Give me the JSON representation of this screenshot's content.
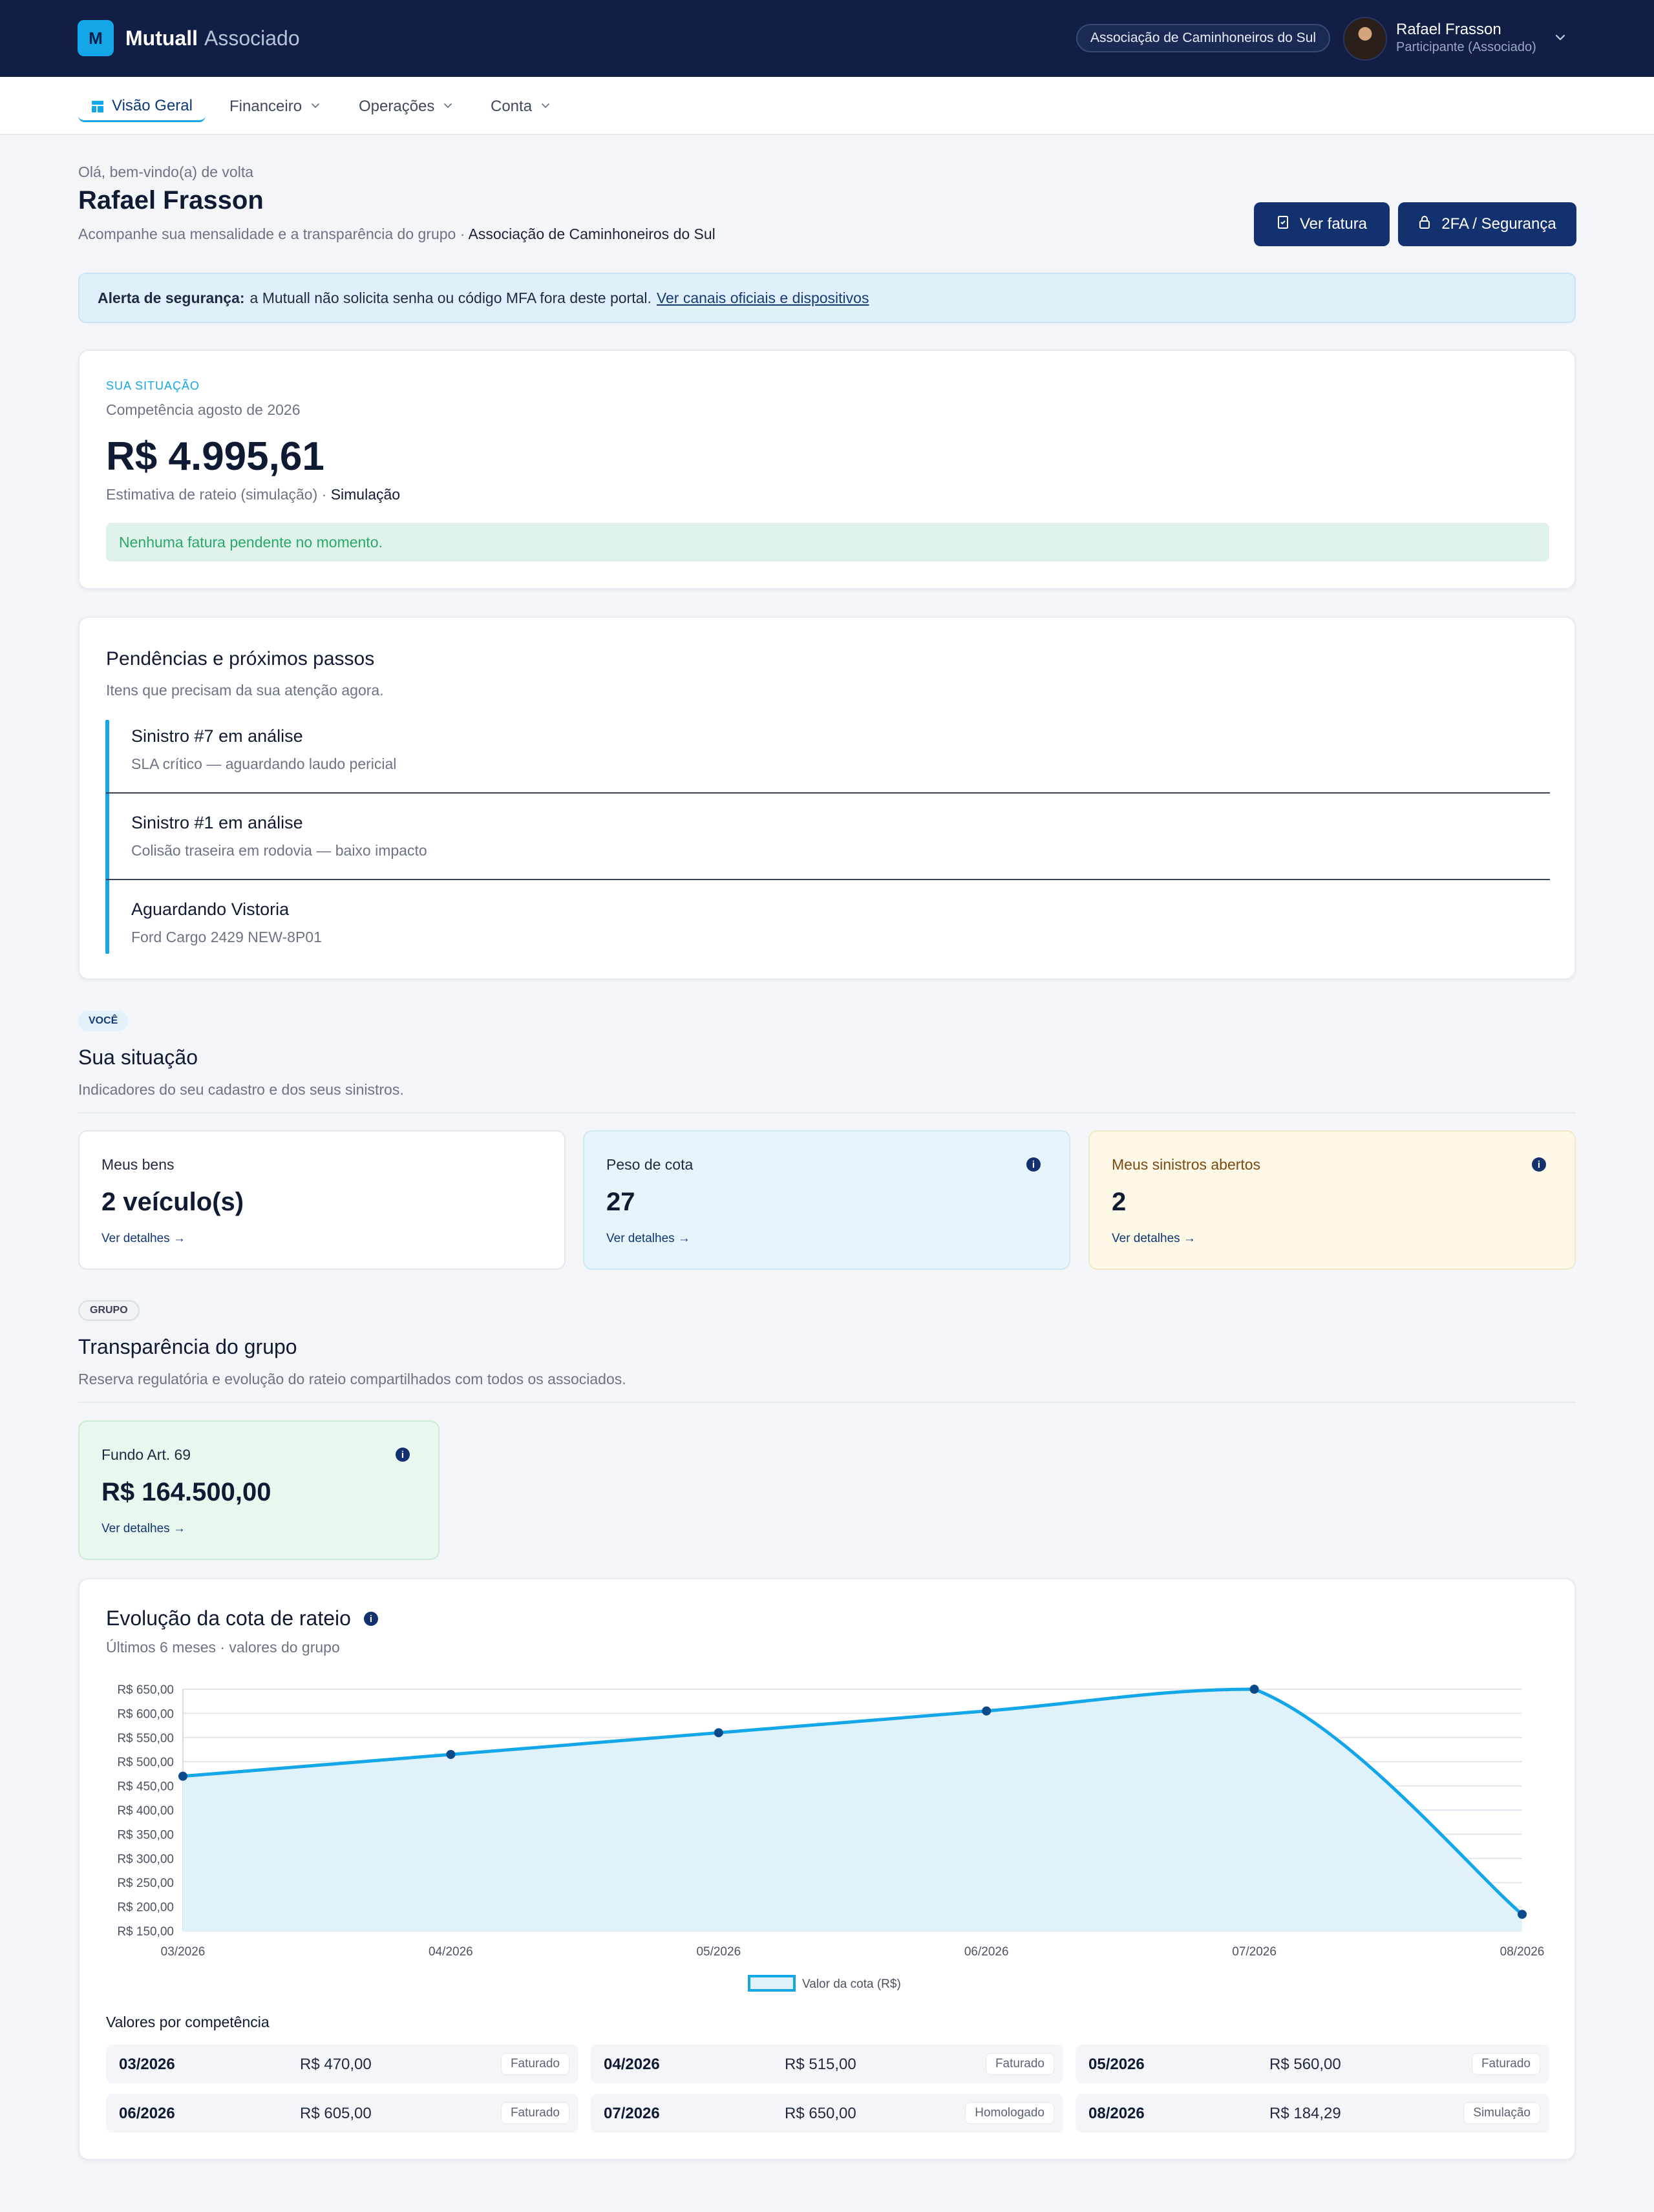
{
  "header": {
    "brand_mark": "M",
    "brand_name": "Mutuall",
    "brand_sub": "Associado",
    "org": "Associação de Caminhoneiros do Sul",
    "user_name": "Rafael Frasson",
    "user_role": "Participante (Associado)"
  },
  "nav": {
    "tabs": [
      {
        "label": "Visão Geral",
        "active": true
      },
      {
        "label": "Financeiro"
      },
      {
        "label": "Operações"
      },
      {
        "label": "Conta"
      }
    ]
  },
  "page": {
    "greeting": "Olá, bem-vindo(a) de volta",
    "title": "Rafael Frasson",
    "subtitle_prefix": "Acompanhe sua mensalidade e a transparência do grupo ·",
    "subtitle_org": "Associação de Caminhoneiros do Sul",
    "btn_invoice": "Ver fatura",
    "btn_security": "2FA / Segurança"
  },
  "alert": {
    "bold": "Alerta de segurança:",
    "text": "a Mutuall não solicita senha ou código MFA fora deste portal.",
    "link": "Ver canais oficiais e dispositivos"
  },
  "situation": {
    "kicker": "Sua situação",
    "competence": "Competência agosto de 2026",
    "amount": "R$ 4.995,61",
    "note_prefix": "Estimativa de rateio (simulação) ·",
    "note_bold": "Simulação",
    "status": "Nenhuma fatura pendente no momento."
  },
  "pending": {
    "title": "Pendências e próximos passos",
    "subtitle": "Itens que precisam da sua atenção agora.",
    "items": [
      {
        "title": "Sinistro #7 em análise",
        "desc": "SLA crítico — aguardando laudo pericial"
      },
      {
        "title": "Sinistro #1 em análise",
        "desc": "Colisão traseira em rodovia — baixo impacto"
      },
      {
        "title": "Aguardando Vistoria",
        "desc": "Ford Cargo 2429 NEW-8P01"
      }
    ]
  },
  "you": {
    "chip": "VOCÊ",
    "title": "Sua situação",
    "subtitle": "Indicadores do seu cadastro e dos seus sinistros.",
    "cards": [
      {
        "label": "Meus bens",
        "value": "2 veículo(s)",
        "link": "Ver detalhes →"
      },
      {
        "label": "Peso de cota",
        "value": "27",
        "link": "Ver detalhes →"
      },
      {
        "label": "Meus sinistros abertos",
        "value": "2",
        "link": "Ver detalhes →"
      }
    ]
  },
  "group": {
    "chip": "GRUPO",
    "title": "Transparência do grupo",
    "subtitle": "Reserva regulatória e evolução do rateio compartilhados com todos os associados.",
    "fund_label": "Fundo Art. 69",
    "fund_value": "R$ 164.500,00",
    "fund_link": "Ver detalhes →"
  },
  "chart_card": {
    "title": "Evolução da cota de rateio",
    "subtitle": "Últimos 6 meses · valores do grupo",
    "values_title": "Valores por competência",
    "rows": [
      {
        "comp": "03/2026",
        "amount": "R$ 470,00",
        "status": "Faturado"
      },
      {
        "comp": "04/2026",
        "amount": "R$ 515,00",
        "status": "Faturado"
      },
      {
        "comp": "05/2026",
        "amount": "R$ 560,00",
        "status": "Faturado"
      },
      {
        "comp": "06/2026",
        "amount": "R$ 605,00",
        "status": "Faturado"
      },
      {
        "comp": "07/2026",
        "amount": "R$ 650,00",
        "status": "Homologado"
      },
      {
        "comp": "08/2026",
        "amount": "R$ 184,29",
        "status": "Simulação"
      }
    ]
  },
  "chart_data": {
    "type": "area",
    "x": [
      "03/2026",
      "04/2026",
      "05/2026",
      "06/2026",
      "07/2026",
      "08/2026"
    ],
    "series": [
      {
        "name": "Valor da cota (R$)",
        "values": [
          470,
          515,
          560,
          605,
          650,
          184.29
        ]
      }
    ],
    "yticks": [
      "R$ 650,00",
      "R$ 600,00",
      "R$ 550,00",
      "R$ 500,00",
      "R$ 450,00",
      "R$ 400,00",
      "R$ 350,00",
      "R$ 300,00",
      "R$ 250,00",
      "R$ 200,00",
      "R$ 150,00"
    ],
    "ylim": [
      150,
      650
    ],
    "grid": true,
    "legend": "bottom",
    "colors": {
      "line": "#13a7ea",
      "fill": "#dff1fb",
      "point": "#0d4a8a"
    }
  }
}
